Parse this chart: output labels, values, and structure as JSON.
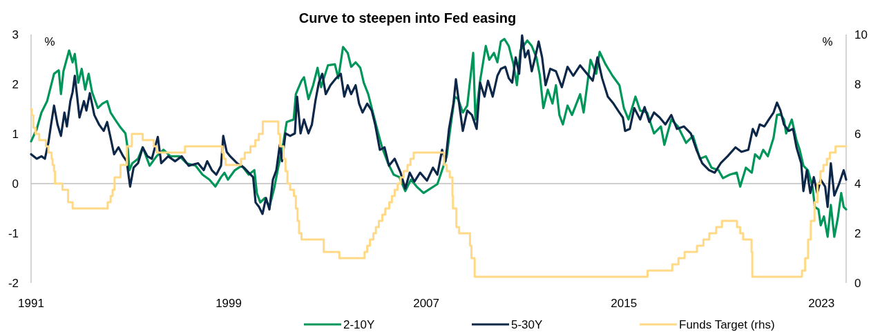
{
  "chart_data": {
    "type": "line",
    "title": "Curve to steepen into Fed easing",
    "ylabel": "%",
    "y2label": "%",
    "xlim": [
      1991,
      2024
    ],
    "xticks": [
      1991,
      1999,
      2007,
      2015,
      2023
    ],
    "ylim": [
      -2,
      3
    ],
    "yticks": [
      -2,
      -1,
      0,
      1,
      2,
      3
    ],
    "y2lim": [
      0,
      10
    ],
    "y2ticks": [
      0,
      2,
      4,
      6,
      8,
      10
    ],
    "legend": "bottom",
    "ref_lines": [
      {
        "axis": "y",
        "value": 0,
        "color": "#bfbfbf"
      }
    ],
    "series": [
      {
        "name": "2-10Y",
        "color": "#00965a",
        "x": [
          1991.0,
          1991.23,
          1991.42,
          1991.65,
          1991.93,
          1992.12,
          1992.21,
          1992.31,
          1992.54,
          1992.68,
          1992.77,
          1992.91,
          1993.05,
          1993.19,
          1993.33,
          1993.47,
          1993.7,
          1993.89,
          1994.08,
          1994.22,
          1994.4,
          1994.59,
          1994.82,
          1994.92,
          1994.98,
          1995.1,
          1995.33,
          1995.52,
          1995.8,
          1996.08,
          1996.36,
          1996.64,
          1997.01,
          1997.29,
          1997.66,
          1997.94,
          1998.22,
          1998.46,
          1998.69,
          1998.83,
          1998.97,
          1999.25,
          1999.53,
          1999.81,
          2000.04,
          2000.14,
          2000.28,
          2000.46,
          2000.65,
          2000.84,
          2001.02,
          2001.21,
          2001.35,
          2001.63,
          2001.72,
          2001.95,
          2002.05,
          2002.23,
          2002.42,
          2002.6,
          2002.74,
          2003.02,
          2003.3,
          2003.44,
          2003.63,
          2003.82,
          2003.96,
          2004.14,
          2004.33,
          2004.47,
          2004.65,
          2004.84,
          2005.03,
          2005.21,
          2005.45,
          2005.68,
          2005.91,
          2006.15,
          2006.38,
          2006.61,
          2006.89,
          2007.17,
          2007.45,
          2007.64,
          2007.83,
          2007.97,
          2008.15,
          2008.29,
          2008.48,
          2008.66,
          2008.9,
          2008.99,
          2009.18,
          2009.41,
          2009.55,
          2009.74,
          2009.88,
          2010.02,
          2010.16,
          2010.34,
          2010.53,
          2010.67,
          2010.81,
          2011.09,
          2011.27,
          2011.46,
          2011.6,
          2011.74,
          2011.92,
          2012.11,
          2012.25,
          2012.39,
          2012.53,
          2012.72,
          2012.9,
          2013.23,
          2013.37,
          2013.65,
          2013.88,
          2014.02,
          2014.26,
          2014.54,
          2014.82,
          2015.0,
          2015.19,
          2015.47,
          2015.66,
          2015.94,
          2016.22,
          2016.5,
          2016.64,
          2016.92,
          2017.19,
          2017.52,
          2017.8,
          2018.08,
          2018.32,
          2018.55,
          2018.83,
          2019.01,
          2019.29,
          2019.57,
          2019.71,
          2019.94,
          2020.18,
          2020.31,
          2020.5,
          2020.64,
          2020.83,
          2021.06,
          2021.2,
          2021.34,
          2021.48,
          2021.57,
          2021.8,
          2021.99,
          2022.12,
          2022.27,
          2022.45,
          2022.64,
          2022.73,
          2022.88,
          2022.97,
          2023.1,
          2023.25,
          2023.38,
          2023.52,
          2023.66,
          2023.8,
          2023.9,
          2024.0
        ],
        "values": [
          0.85,
          1.1,
          1.43,
          1.66,
          2.21,
          2.28,
          1.8,
          2.26,
          2.68,
          2.44,
          2.61,
          2.03,
          2.31,
          1.89,
          2.21,
          1.84,
          1.52,
          1.61,
          1.66,
          1.43,
          1.29,
          1.15,
          1.01,
          0.68,
          0.27,
          0.41,
          0.5,
          0.73,
          0.36,
          0.55,
          0.68,
          0.55,
          0.55,
          0.41,
          0.36,
          0.18,
          0.08,
          -0.06,
          0.13,
          0.22,
          0.08,
          0.27,
          0.36,
          0.18,
          0.27,
          -0.19,
          -0.38,
          -0.29,
          -0.47,
          -0.1,
          0.36,
          0.82,
          1.24,
          1.29,
          1.8,
          2.07,
          2.14,
          1.7,
          1.98,
          2.33,
          1.94,
          2.38,
          2.4,
          2.12,
          2.75,
          2.63,
          2.35,
          2.44,
          2.33,
          2.03,
          1.8,
          1.43,
          1.06,
          0.73,
          0.41,
          0.18,
          0.13,
          -0.15,
          0.08,
          -0.06,
          -0.19,
          -0.1,
          -0.01,
          0.27,
          0.55,
          1.1,
          1.75,
          1.7,
          1.43,
          1.57,
          2.63,
          1.29,
          2.07,
          2.77,
          2.49,
          2.63,
          2.44,
          2.86,
          2.91,
          2.77,
          2.4,
          1.98,
          2.68,
          2.88,
          2.77,
          2.54,
          2.17,
          1.52,
          1.89,
          1.61,
          1.98,
          1.38,
          1.19,
          1.57,
          1.38,
          1.8,
          1.43,
          2.49,
          2.21,
          2.65,
          2.4,
          2.17,
          1.98,
          1.52,
          1.29,
          1.75,
          1.47,
          1.43,
          1.01,
          1.15,
          0.78,
          1.29,
          1.15,
          0.82,
          0.96,
          0.5,
          0.55,
          0.32,
          0.27,
          0.11,
          0.18,
          0.22,
          -0.06,
          0.32,
          0.22,
          0.59,
          0.5,
          0.68,
          0.55,
          0.92,
          1.38,
          1.4,
          1.29,
          1.01,
          1.29,
          0.87,
          0.68,
          0.36,
          0.27,
          -0.06,
          -0.47,
          -0.52,
          -0.84,
          -0.66,
          -1.07,
          -0.43,
          -1.07,
          -0.7,
          -0.19,
          -0.47,
          -0.52
        ]
      },
      {
        "name": "5-30Y",
        "color": "#0c2748",
        "x": [
          1991.0,
          1991.23,
          1991.42,
          1991.56,
          1991.7,
          1991.81,
          1991.93,
          1992.07,
          1992.21,
          1992.35,
          1992.45,
          1992.59,
          1992.68,
          1992.77,
          1992.96,
          1993.14,
          1993.24,
          1993.38,
          1993.56,
          1993.75,
          1993.94,
          1994.08,
          1994.22,
          1994.36,
          1994.54,
          1994.73,
          1994.87,
          1995.01,
          1995.15,
          1995.33,
          1995.52,
          1995.71,
          1995.89,
          1996.13,
          1996.27,
          1996.55,
          1996.83,
          1997.1,
          1997.38,
          1997.76,
          1997.99,
          1998.13,
          1998.32,
          1998.5,
          1998.69,
          1998.78,
          1998.92,
          1999.06,
          1999.34,
          1999.62,
          1999.81,
          1999.99,
          2000.09,
          2000.23,
          2000.37,
          2000.51,
          2000.65,
          2000.79,
          2000.93,
          2001.07,
          2001.16,
          2001.3,
          2001.49,
          2001.68,
          2001.77,
          2001.91,
          2002.05,
          2002.23,
          2002.37,
          2002.51,
          2002.65,
          2002.79,
          2002.93,
          2003.12,
          2003.35,
          2003.54,
          2003.68,
          2003.82,
          2003.96,
          2004.14,
          2004.28,
          2004.42,
          2004.61,
          2004.79,
          2004.93,
          2005.12,
          2005.31,
          2005.49,
          2005.72,
          2005.96,
          2006.15,
          2006.33,
          2006.52,
          2006.75,
          2007.03,
          2007.27,
          2007.45,
          2007.64,
          2007.78,
          2007.92,
          2008.1,
          2008.2,
          2008.34,
          2008.48,
          2008.66,
          2008.85,
          2009.04,
          2009.18,
          2009.36,
          2009.5,
          2009.69,
          2009.88,
          2010.02,
          2010.2,
          2010.34,
          2010.48,
          2010.62,
          2010.76,
          2010.88,
          2011.0,
          2011.13,
          2011.27,
          2011.41,
          2011.55,
          2011.69,
          2011.83,
          2012.02,
          2012.25,
          2012.49,
          2012.72,
          2012.95,
          2013.23,
          2013.51,
          2013.74,
          2013.93,
          2014.12,
          2014.35,
          2014.58,
          2014.82,
          2014.96,
          2015.05,
          2015.24,
          2015.42,
          2015.66,
          2015.84,
          2016.03,
          2016.22,
          2016.45,
          2016.68,
          2016.92,
          2017.15,
          2017.43,
          2017.71,
          2017.94,
          2018.17,
          2018.45,
          2018.68,
          2018.92,
          2019.2,
          2019.52,
          2019.76,
          2020.04,
          2020.22,
          2020.36,
          2020.5,
          2020.69,
          2020.87,
          2021.06,
          2021.2,
          2021.34,
          2021.48,
          2021.67,
          2021.85,
          2021.99,
          2022.18,
          2022.27,
          2022.41,
          2022.55,
          2022.69,
          2022.83,
          2022.97,
          2023.15,
          2023.25,
          2023.38,
          2023.52,
          2023.71,
          2023.9,
          2024.0
        ],
        "values": [
          0.59,
          0.5,
          0.55,
          0.5,
          0.82,
          1.19,
          1.57,
          1.19,
          0.96,
          1.43,
          1.15,
          1.66,
          1.84,
          2.17,
          1.33,
          1.66,
          1.47,
          1.82,
          1.38,
          1.19,
          1.06,
          1.24,
          0.92,
          0.59,
          0.73,
          0.55,
          0.45,
          -0.06,
          0.32,
          0.41,
          0.73,
          0.55,
          0.5,
          0.94,
          0.41,
          0.55,
          0.45,
          0.55,
          0.36,
          0.41,
          0.27,
          0.45,
          0.27,
          0.18,
          0.36,
          0.96,
          0.64,
          0.55,
          0.41,
          0.32,
          0.22,
          0.13,
          -0.38,
          -0.47,
          -0.61,
          -0.29,
          -0.52,
          0.08,
          0.27,
          0.78,
          0.45,
          1.01,
          0.96,
          1.01,
          1.75,
          1.01,
          1.29,
          1.01,
          1.19,
          1.66,
          2.03,
          2.21,
          1.8,
          1.98,
          2.12,
          2.21,
          1.75,
          1.98,
          1.8,
          1.98,
          1.61,
          1.43,
          1.61,
          1.47,
          1.19,
          0.68,
          0.73,
          0.36,
          0.5,
          0.22,
          -0.1,
          0.22,
          0.04,
          0.22,
          0.06,
          0.32,
          0.18,
          0.68,
          0.45,
          1.1,
          1.61,
          2.1,
          1.57,
          1.06,
          1.47,
          1.38,
          1.1,
          2.03,
          1.75,
          2.07,
          1.75,
          2.17,
          2.31,
          2.35,
          2.12,
          2.03,
          2.54,
          2.21,
          2.98,
          2.54,
          2.68,
          2.26,
          2.54,
          2.86,
          2.54,
          1.98,
          2.31,
          2.26,
          1.94,
          2.35,
          2.17,
          2.38,
          2.21,
          2.07,
          2.54,
          2.12,
          1.75,
          1.61,
          1.43,
          1.33,
          1.06,
          1.1,
          1.52,
          1.29,
          1.54,
          1.24,
          1.43,
          1.33,
          1.19,
          1.38,
          1.1,
          1.15,
          1.01,
          0.68,
          0.41,
          0.27,
          0.22,
          0.41,
          0.55,
          0.73,
          0.64,
          0.68,
          1.1,
          0.96,
          1.19,
          1.15,
          1.29,
          1.43,
          1.63,
          1.47,
          1.19,
          1.06,
          1.1,
          0.73,
          0.41,
          -0.15,
          0.27,
          -0.19,
          0.13,
          -0.19,
          0.08,
          -0.06,
          -0.47,
          0.41,
          -0.24,
          -0.01,
          0.27,
          0.08
        ]
      },
      {
        "name": "Funds Target (rhs)",
        "type": "step",
        "axis": "y2",
        "color": "#ffd985",
        "x": [
          1991.0,
          1991.03,
          1991.09,
          1991.18,
          1991.33,
          1991.6,
          1991.7,
          1991.83,
          1991.87,
          1991.93,
          1991.97,
          1992.27,
          1992.5,
          1992.68,
          1994.1,
          1994.22,
          1994.3,
          1994.38,
          1994.62,
          1994.88,
          1995.08,
          1995.52,
          1995.97,
          1996.08,
          1997.23,
          1998.74,
          1998.79,
          1998.88,
          1999.5,
          1999.65,
          1999.88,
          2000.08,
          2000.22,
          2000.38,
          2001.01,
          2001.08,
          2001.22,
          2001.3,
          2001.38,
          2001.49,
          2001.64,
          2001.72,
          2001.79,
          2001.85,
          2001.95,
          2002.85,
          2003.48,
          2004.5,
          2004.61,
          2004.72,
          2004.86,
          2004.96,
          2005.08,
          2005.22,
          2005.34,
          2005.5,
          2005.61,
          2005.72,
          2005.84,
          2005.96,
          2006.08,
          2006.24,
          2006.36,
          2006.49,
          2007.72,
          2007.83,
          2007.95,
          2008.06,
          2008.08,
          2008.22,
          2008.33,
          2008.77,
          2008.83,
          2008.96,
          2015.96,
          2016.96,
          2017.21,
          2017.46,
          2017.96,
          2018.22,
          2018.46,
          2018.74,
          2018.97,
          2019.58,
          2019.71,
          2019.83,
          2020.17,
          2020.2,
          2022.21,
          2022.34,
          2022.46,
          2022.57,
          2022.72,
          2022.84,
          2022.96,
          2023.08,
          2023.22,
          2023.34,
          2023.57,
          2024.0
        ],
        "values": [
          7.0,
          6.75,
          6.25,
          6.0,
          5.75,
          5.5,
          5.25,
          5.0,
          4.75,
          4.5,
          4.0,
          3.75,
          3.25,
          3.0,
          3.25,
          3.5,
          3.75,
          4.25,
          4.75,
          5.5,
          6.0,
          5.75,
          5.5,
          5.25,
          5.5,
          5.25,
          5.0,
          4.75,
          5.0,
          5.25,
          5.5,
          5.75,
          6.0,
          6.5,
          6.0,
          5.5,
          5.0,
          4.5,
          4.0,
          3.75,
          3.5,
          3.0,
          2.5,
          2.0,
          1.75,
          1.25,
          1.0,
          1.25,
          1.5,
          1.75,
          2.0,
          2.25,
          2.5,
          2.75,
          3.0,
          3.25,
          3.5,
          3.75,
          4.0,
          4.25,
          4.5,
          4.75,
          5.0,
          5.25,
          4.75,
          4.5,
          4.25,
          3.5,
          3.0,
          2.25,
          2.0,
          1.5,
          1.0,
          0.25,
          0.5,
          0.75,
          1.0,
          1.25,
          1.5,
          1.75,
          2.0,
          2.25,
          2.5,
          2.25,
          2.0,
          1.75,
          1.25,
          0.25,
          0.5,
          1.0,
          1.75,
          2.5,
          3.25,
          4.0,
          4.5,
          4.75,
          5.0,
          5.25,
          5.5,
          5.5
        ]
      }
    ]
  }
}
